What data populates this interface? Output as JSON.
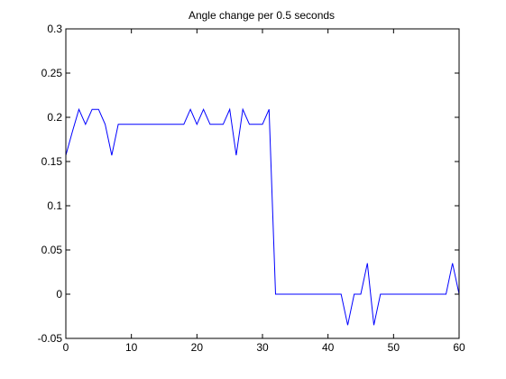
{
  "chart_data": {
    "type": "line",
    "title": "Angle change per 0.5 seconds",
    "xlabel": "",
    "ylabel": "",
    "xlim": [
      0,
      60
    ],
    "ylim": [
      -0.05,
      0.3
    ],
    "grid": false,
    "xticks": [
      0,
      10,
      20,
      30,
      40,
      50,
      60
    ],
    "yticks": [
      -0.05,
      0,
      0.05,
      0.1,
      0.15,
      0.2,
      0.25,
      0.3
    ],
    "xtick_labels": [
      "0",
      "10",
      "20",
      "30",
      "40",
      "50",
      "60"
    ],
    "ytick_labels": [
      "-0.05",
      "0",
      "0.05",
      "0.1",
      "0.15",
      "0.2",
      "0.25",
      "0.3"
    ],
    "series": [
      {
        "color": "#0000ff",
        "x": [
          0,
          1,
          2,
          3,
          4,
          5,
          6,
          7,
          8,
          9,
          10,
          11,
          12,
          13,
          14,
          15,
          16,
          17,
          18,
          19,
          20,
          21,
          22,
          23,
          24,
          25,
          26,
          27,
          28,
          29,
          30,
          31,
          32,
          33,
          34,
          35,
          36,
          37,
          38,
          39,
          40,
          41,
          42,
          43,
          44,
          45,
          46,
          47,
          48,
          49,
          50,
          51,
          52,
          53,
          54,
          55,
          56,
          57,
          58,
          59,
          60
        ],
        "values": [
          0.157,
          0.184,
          0.209,
          0.192,
          0.209,
          0.209,
          0.192,
          0.157,
          0.192,
          0.192,
          0.192,
          0.192,
          0.192,
          0.192,
          0.192,
          0.192,
          0.192,
          0.192,
          0.192,
          0.209,
          0.192,
          0.209,
          0.192,
          0.192,
          0.192,
          0.209,
          0.157,
          0.209,
          0.192,
          0.192,
          0.192,
          0.209,
          0.0,
          0.0,
          0.0,
          0.0,
          0.0,
          0.0,
          0.0,
          0.0,
          0.0,
          0.0,
          0.0,
          -0.035,
          0.0,
          0.0,
          0.035,
          -0.035,
          0.0,
          0.0,
          0.0,
          0.0,
          0.0,
          0.0,
          0.0,
          0.0,
          0.0,
          0.0,
          0.0,
          0.035,
          0.0
        ]
      }
    ]
  }
}
